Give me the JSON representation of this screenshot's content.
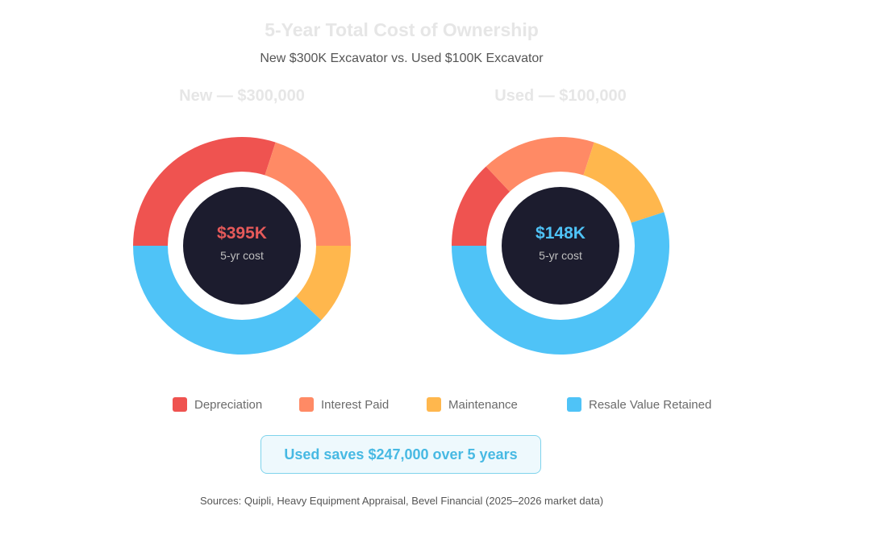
{
  "header": {
    "title": "5-Year Total Cost of Ownership",
    "subtitle": "New $300K Excavator vs. Used $100K Excavator"
  },
  "chart_data": [
    {
      "type": "pie",
      "title": "New — $300,000",
      "center_value": "$395K",
      "center_label": "5-yr cost",
      "center_color": "#e65a5a",
      "categories": [
        "Depreciation",
        "Interest Paid",
        "Maintenance",
        "Resale Value Retained"
      ],
      "values": [
        30,
        20,
        12,
        38
      ],
      "colors": [
        "#ef5350",
        "#ff8a65",
        "#ffb74d",
        "#4fc3f7"
      ]
    },
    {
      "type": "pie",
      "title": "Used — $100,000",
      "center_value": "$148K",
      "center_label": "5-yr cost",
      "center_color": "#4fc3f7",
      "categories": [
        "Depreciation",
        "Interest Paid",
        "Maintenance",
        "Resale Value Retained"
      ],
      "values": [
        13,
        17,
        15,
        55
      ],
      "colors": [
        "#ef5350",
        "#ff8a65",
        "#ffb74d",
        "#4fc3f7"
      ]
    }
  ],
  "legend": [
    {
      "label": "Depreciation",
      "color": "#ef5350"
    },
    {
      "label": "Interest Paid",
      "color": "#ff8a65"
    },
    {
      "label": "Maintenance",
      "color": "#ffb74d"
    },
    {
      "label": "Resale Value Retained",
      "color": "#4fc3f7"
    }
  ],
  "savings": "Used saves $247,000 over 5 years",
  "sources": "Sources: Quipli, Heavy Equipment Appraisal, Bevel Financial (2025–2026 market data)",
  "colors": {
    "donut_hole": "#1c1c2e",
    "ring_gap": "#ffffff"
  }
}
